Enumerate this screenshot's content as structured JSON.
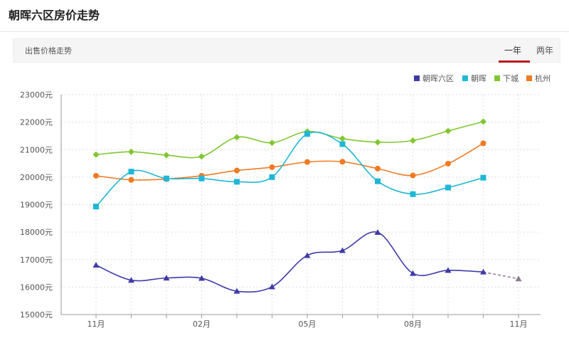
{
  "page": {
    "title": "朝晖六区房价走势",
    "section_label": "出售价格走势",
    "tabs": [
      {
        "label": "一年",
        "active": true
      },
      {
        "label": "两年",
        "active": false
      }
    ]
  },
  "colors": {
    "accent": "#c0161a",
    "series_1": "#3f3aa8",
    "series_2": "#1fb7d6",
    "series_3": "#7fc730",
    "series_4": "#f07a22"
  },
  "chart_data": {
    "type": "line",
    "title": "",
    "xlabel": "",
    "ylabel": "",
    "ylim": [
      15000,
      23000
    ],
    "yticks": [
      "15000元",
      "16000元",
      "17000元",
      "18000元",
      "19000元",
      "20000元",
      "21000元",
      "22000元",
      "23000元"
    ],
    "ytick_values": [
      15000,
      16000,
      17000,
      18000,
      19000,
      20000,
      21000,
      22000,
      23000
    ],
    "xticks": [
      "11月",
      "02月",
      "05月",
      "08月",
      "11月"
    ],
    "xtick_index": [
      0,
      3,
      6,
      9,
      12
    ],
    "x": [
      0,
      1,
      2,
      3,
      4,
      5,
      6,
      7,
      8,
      9,
      10,
      11
    ],
    "legend_position": "top-right",
    "series": [
      {
        "name": "朝晖六区",
        "marker": "triangle",
        "values": [
          16800,
          16250,
          16330,
          16320,
          15850,
          16010,
          17150,
          17330,
          17990,
          16500,
          16610,
          16550
        ],
        "forecast": [
          16550,
          16300
        ]
      },
      {
        "name": "朝晖",
        "marker": "square",
        "values": [
          18930,
          20200,
          19950,
          19950,
          19830,
          20000,
          21570,
          21200,
          19850,
          19380,
          19620,
          19980
        ]
      },
      {
        "name": "下城",
        "marker": "diamond",
        "values": [
          20820,
          20920,
          20800,
          20750,
          21450,
          21250,
          21660,
          21400,
          21270,
          21330,
          21680,
          22020
        ]
      },
      {
        "name": "杭州",
        "marker": "circle",
        "values": [
          20050,
          19900,
          19930,
          20050,
          20240,
          20360,
          20550,
          20560,
          20310,
          20060,
          20490,
          21230
        ]
      }
    ]
  }
}
